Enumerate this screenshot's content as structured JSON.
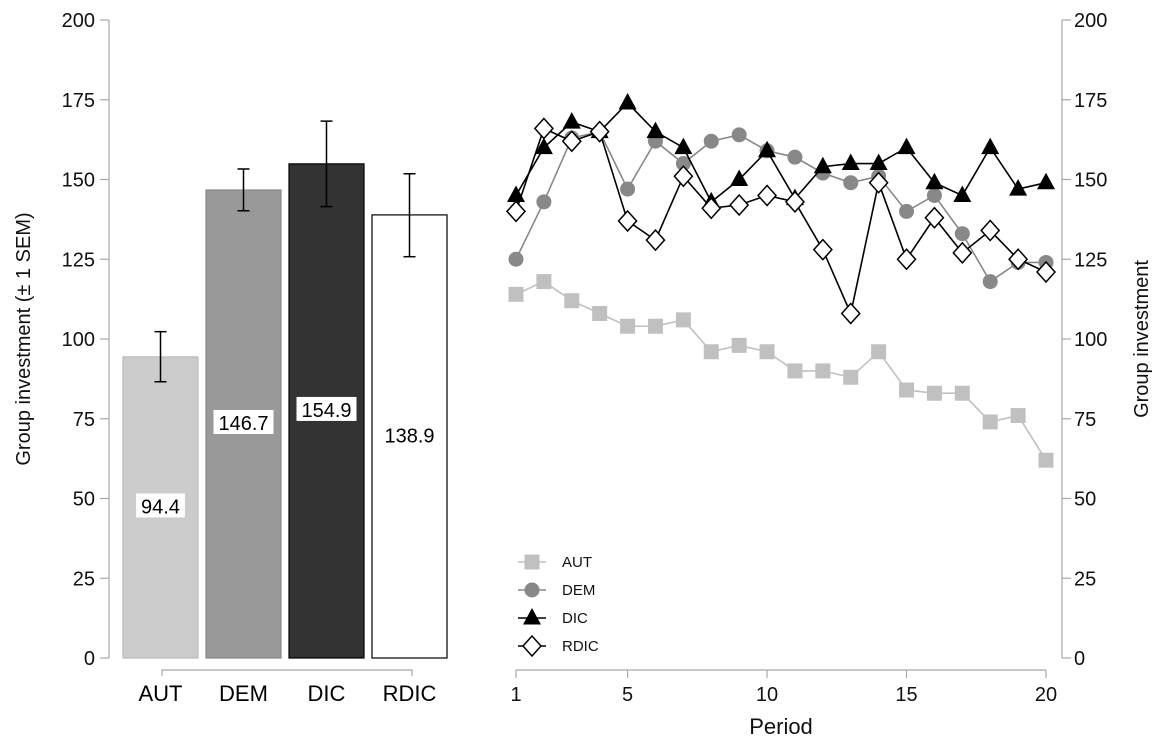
{
  "chart_data": [
    {
      "type": "bar",
      "ylabel": "Group investment (± 1 SEM)",
      "ylim": [
        0,
        200
      ],
      "yticks": [
        0,
        25,
        50,
        75,
        100,
        125,
        150,
        175,
        200
      ],
      "categories": [
        "AUT",
        "DEM",
        "DIC",
        "RDIC"
      ],
      "values": [
        94.4,
        146.7,
        154.9,
        138.9
      ],
      "value_labels": [
        "94.4",
        "146.7",
        "154.9",
        "138.9"
      ],
      "error_low": [
        86.6,
        140.2,
        141.5,
        125.8
      ],
      "error_high": [
        102.3,
        153.3,
        168.3,
        151.8
      ],
      "bar_fill": [
        "#cccccc",
        "#999999",
        "#333333",
        "#ffffff"
      ],
      "bar_stroke": [
        "#bbbbbb",
        "#888888",
        "#000000",
        "#000000"
      ]
    },
    {
      "type": "line",
      "xlabel": "Period",
      "ylabel": "Group investment",
      "xlim": [
        1,
        20
      ],
      "ylim": [
        0,
        200
      ],
      "xticks": [
        1,
        5,
        10,
        15,
        20
      ],
      "yticks": [
        0,
        25,
        50,
        75,
        100,
        125,
        150,
        175,
        200
      ],
      "legend_position": "bottom-left",
      "x": [
        1,
        2,
        3,
        4,
        5,
        6,
        7,
        8,
        9,
        10,
        11,
        12,
        13,
        14,
        15,
        16,
        17,
        18,
        19,
        20
      ],
      "series": [
        {
          "name": "AUT",
          "marker": "square",
          "color": "#c0c0c0",
          "values": [
            114,
            118,
            112,
            108,
            104,
            104,
            106,
            96,
            98,
            96,
            90,
            90,
            88,
            96,
            84,
            83,
            83,
            74,
            76,
            62
          ]
        },
        {
          "name": "DEM",
          "marker": "circle",
          "color": "#888888",
          "values": [
            125,
            143,
            163,
            165,
            147,
            162,
            155,
            162,
            164,
            159,
            157,
            152,
            149,
            151,
            140,
            145,
            133,
            118,
            124,
            124
          ]
        },
        {
          "name": "DIC",
          "marker": "triangle",
          "color": "#000000",
          "values": [
            145,
            160,
            168,
            165,
            174,
            165,
            160,
            143,
            150,
            159,
            144,
            154,
            155,
            155,
            160,
            149,
            145,
            160,
            147,
            149
          ]
        },
        {
          "name": "RDIC",
          "marker": "diamond",
          "color": "#000000",
          "values": [
            140,
            166,
            162,
            165,
            137,
            131,
            151,
            141,
            142,
            145,
            143,
            128,
            108,
            149,
            125,
            138,
            127,
            134,
            125,
            121
          ]
        }
      ]
    }
  ]
}
